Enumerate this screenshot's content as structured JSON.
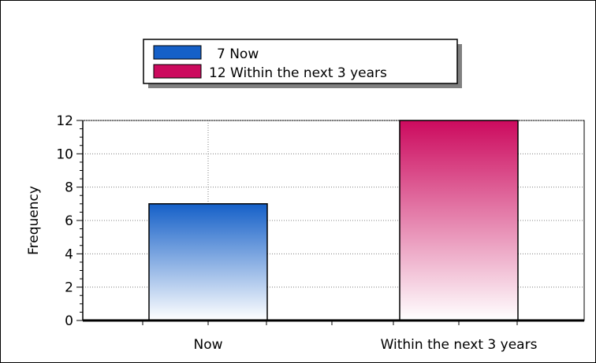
{
  "chart_data": {
    "type": "bar",
    "categories": [
      "Now",
      "Within the next 3 years"
    ],
    "values": [
      7,
      12
    ],
    "ylabel": "Frequency",
    "xlabel": "",
    "ylim": [
      0,
      12
    ],
    "yticks": [
      0,
      2,
      4,
      6,
      8,
      10,
      12
    ],
    "grid": true,
    "legend": {
      "placement": "top-center",
      "entries": [
        "7 Now",
        "12 Within the next 3 years"
      ]
    },
    "colors": {
      "Now": "#1560c8",
      "Within the next 3 years": "#cc0a5e"
    }
  }
}
